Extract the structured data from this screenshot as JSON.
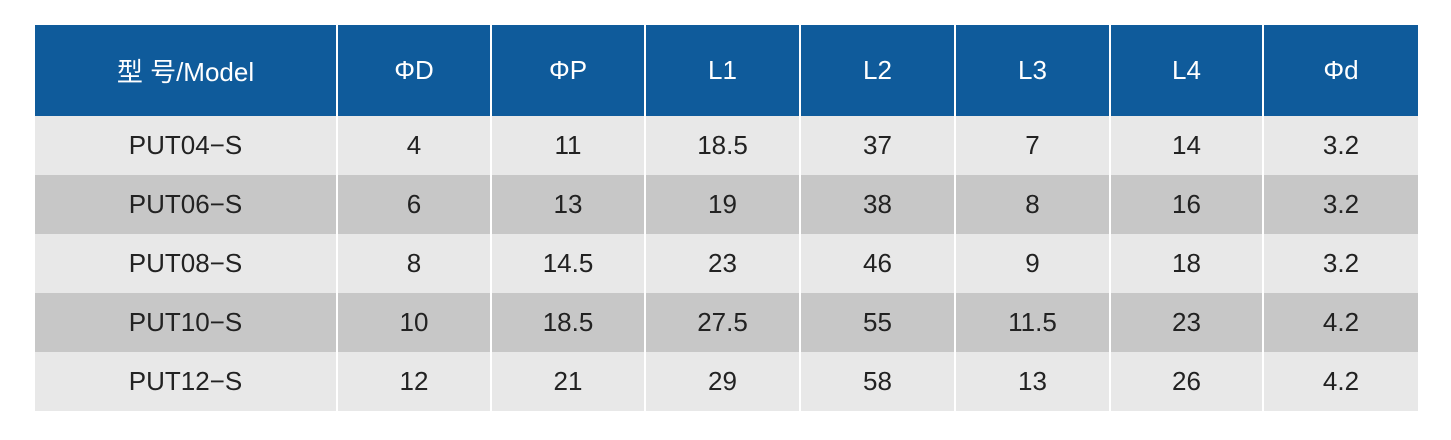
{
  "table": {
    "header": [
      "型 号/Model",
      "ΦD",
      "ΦP",
      "L1",
      "L2",
      "L3",
      "L4",
      "Φd"
    ],
    "rows": [
      [
        "PUT04−S",
        "4",
        "11",
        "18.5",
        "37",
        "7",
        "14",
        "3.2"
      ],
      [
        "PUT06−S",
        "6",
        "13",
        "19",
        "38",
        "8",
        "16",
        "3.2"
      ],
      [
        "PUT08−S",
        "8",
        "14.5",
        "23",
        "46",
        "9",
        "18",
        "3.2"
      ],
      [
        "PUT10−S",
        "10",
        "18.5",
        "27.5",
        "55",
        "11.5",
        "23",
        "4.2"
      ],
      [
        "PUT12−S",
        "12",
        "21",
        "29",
        "58",
        "13",
        "26",
        "4.2"
      ]
    ]
  }
}
